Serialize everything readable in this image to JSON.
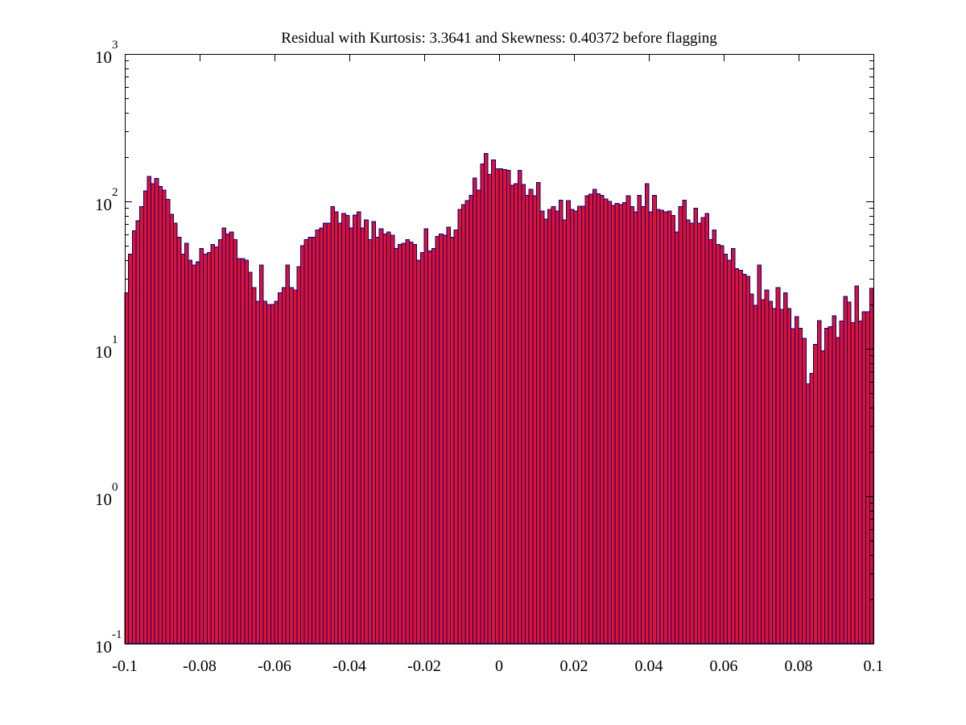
{
  "chart_data": {
    "type": "bar",
    "subtype": "histogram",
    "title": "Residual with Kurtosis: 3.3641 and Skewness: 0.40372 before flagging",
    "xlabel": "",
    "ylabel": "",
    "yscale": "log",
    "xlim": [
      -0.1,
      0.1
    ],
    "ylim": [
      0.1,
      1000
    ],
    "grid": false,
    "legend": null,
    "x_start": -0.1,
    "bin_width": 0.001,
    "x_ticks": [
      -0.1,
      -0.08,
      -0.06,
      -0.04,
      -0.02,
      0,
      0.02,
      0.04,
      0.06,
      0.08,
      0.1
    ],
    "x_tick_labels": [
      "-0.1",
      "-0.08",
      "-0.06",
      "-0.04",
      "-0.02",
      "0",
      "0.02",
      "0.04",
      "0.06",
      "0.08",
      "0.1"
    ],
    "y_tick_base": "10",
    "y_tick_exponents": [
      "3",
      "2",
      "1",
      "0",
      "-1"
    ],
    "colors": {
      "bar_fill": "#e01230",
      "bar_edge": "#000080",
      "axis": "#000000",
      "background": "#ffffff"
    },
    "values": [
      24,
      44,
      63,
      74,
      92,
      118,
      148,
      132,
      143,
      126,
      119,
      103,
      82,
      71,
      57,
      44,
      52,
      40,
      37,
      39,
      48,
      44,
      45,
      51,
      49,
      55,
      66,
      60,
      62,
      55,
      41,
      41,
      40,
      33,
      26,
      21,
      37,
      21,
      20,
      20,
      21,
      24,
      26,
      37,
      26,
      25,
      36,
      50,
      55,
      57,
      57,
      64,
      66,
      71,
      71,
      92,
      85,
      71,
      83,
      80,
      66,
      81,
      85,
      66,
      75,
      55,
      73,
      57,
      65,
      60,
      62,
      59,
      48,
      51,
      52,
      55,
      53,
      51,
      40,
      45,
      65,
      46,
      48,
      58,
      60,
      59,
      67,
      57,
      64,
      88,
      95,
      101,
      110,
      144,
      119,
      179,
      212,
      152,
      191,
      166,
      166,
      164,
      162,
      129,
      132,
      162,
      130,
      110,
      121,
      109,
      134,
      86,
      76,
      88,
      92,
      86,
      102,
      75,
      101,
      88,
      86,
      93,
      93,
      109,
      112,
      121,
      113,
      110,
      104,
      100,
      94,
      97,
      95,
      98,
      109,
      92,
      85,
      110,
      92,
      132,
      85,
      110,
      88,
      87,
      85,
      86,
      80,
      62,
      92,
      102,
      75,
      71,
      90,
      71,
      78,
      83,
      55,
      64,
      51,
      50,
      44,
      40,
      48,
      35,
      34,
      32,
      31,
      23.5,
      19.7,
      37,
      21.5,
      25,
      21,
      18.8,
      26,
      18.5,
      24,
      18.8,
      13.7,
      16.5,
      13.8,
      11.8,
      5.8,
      6.8,
      10.7,
      15.5,
      9.7,
      13.8,
      14.1,
      16.7,
      11.9,
      15.4,
      22.6,
      20.7,
      15.1,
      26.7,
      15.4,
      17.8,
      17.8,
      25.7
    ]
  }
}
